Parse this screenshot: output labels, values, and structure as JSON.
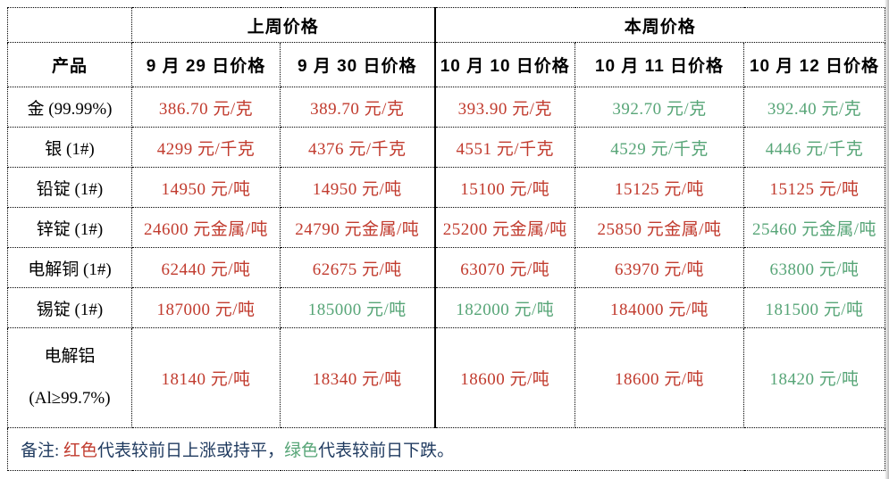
{
  "header": {
    "product": "产品",
    "last_week": "上周价格",
    "this_week": "本周价格",
    "dates": [
      "9 月 29 日价格",
      "9 月 30 日价格",
      "10 月 10 日价格",
      "10 月 11 日价格",
      "10 月 12 日价格"
    ]
  },
  "colors": {
    "up": "#c13b2e",
    "down": "#57a577",
    "note": "#1f3a5f",
    "header_text": "#000000",
    "border": "#000000"
  },
  "rows": [
    {
      "product_lines": [
        "金 (99.99%)"
      ],
      "prices": [
        {
          "text": "386.70 元/克",
          "trend": "up"
        },
        {
          "text": "389.70 元/克",
          "trend": "up"
        },
        {
          "text": "393.90 元/克",
          "trend": "up"
        },
        {
          "text": "392.70 元/克",
          "trend": "down"
        },
        {
          "text": "392.40 元/克",
          "trend": "down"
        }
      ]
    },
    {
      "product_lines": [
        "银 (1#)"
      ],
      "prices": [
        {
          "text": "4299 元/千克",
          "trend": "up"
        },
        {
          "text": "4376 元/千克",
          "trend": "up"
        },
        {
          "text": "4551 元/千克",
          "trend": "up"
        },
        {
          "text": "4529 元/千克",
          "trend": "down"
        },
        {
          "text": "4446 元/千克",
          "trend": "down"
        }
      ]
    },
    {
      "product_lines": [
        "铅锭 (1#)"
      ],
      "prices": [
        {
          "text": "14950 元/吨",
          "trend": "up"
        },
        {
          "text": "14950 元/吨",
          "trend": "up"
        },
        {
          "text": "15100 元/吨",
          "trend": "up"
        },
        {
          "text": "15125 元/吨",
          "trend": "up"
        },
        {
          "text": "15125 元/吨",
          "trend": "up"
        }
      ]
    },
    {
      "product_lines": [
        "锌锭 (1#)"
      ],
      "prices": [
        {
          "text": "24600 元金属/吨",
          "trend": "up"
        },
        {
          "text": "24790 元金属/吨",
          "trend": "up"
        },
        {
          "text": "25200 元金属/吨",
          "trend": "up"
        },
        {
          "text": "25850 元金属/吨",
          "trend": "up"
        },
        {
          "text": "25460 元金属/吨",
          "trend": "down"
        }
      ]
    },
    {
      "product_lines": [
        "电解铜 (1#)"
      ],
      "prices": [
        {
          "text": "62440 元/吨",
          "trend": "up"
        },
        {
          "text": "62675 元/吨",
          "trend": "up"
        },
        {
          "text": "63070 元/吨",
          "trend": "up"
        },
        {
          "text": "63970 元/吨",
          "trend": "up"
        },
        {
          "text": "63800 元/吨",
          "trend": "down"
        }
      ]
    },
    {
      "product_lines": [
        "锡锭 (1#)"
      ],
      "prices": [
        {
          "text": "187000 元/吨",
          "trend": "up"
        },
        {
          "text": "185000 元/吨",
          "trend": "down"
        },
        {
          "text": "182000 元/吨",
          "trend": "down"
        },
        {
          "text": "184000 元/吨",
          "trend": "up"
        },
        {
          "text": "181500 元/吨",
          "trend": "down"
        }
      ]
    },
    {
      "product_lines": [
        "电解铝",
        "(Al≥99.7%)"
      ],
      "tall": true,
      "prices": [
        {
          "text": "18140 元/吨",
          "trend": "up"
        },
        {
          "text": "18340 元/吨",
          "trend": "up"
        },
        {
          "text": "18600 元/吨",
          "trend": "up"
        },
        {
          "text": "18600 元/吨",
          "trend": "up"
        },
        {
          "text": "18420 元/吨",
          "trend": "down"
        }
      ]
    }
  ],
  "note": {
    "segments": [
      {
        "text": "备注: ",
        "color": "note"
      },
      {
        "text": "红色",
        "color": "up"
      },
      {
        "text": "代表较前日上涨或持平，",
        "color": "note"
      },
      {
        "text": "绿色",
        "color": "down"
      },
      {
        "text": "代表较前日下跌。",
        "color": "note"
      }
    ]
  }
}
